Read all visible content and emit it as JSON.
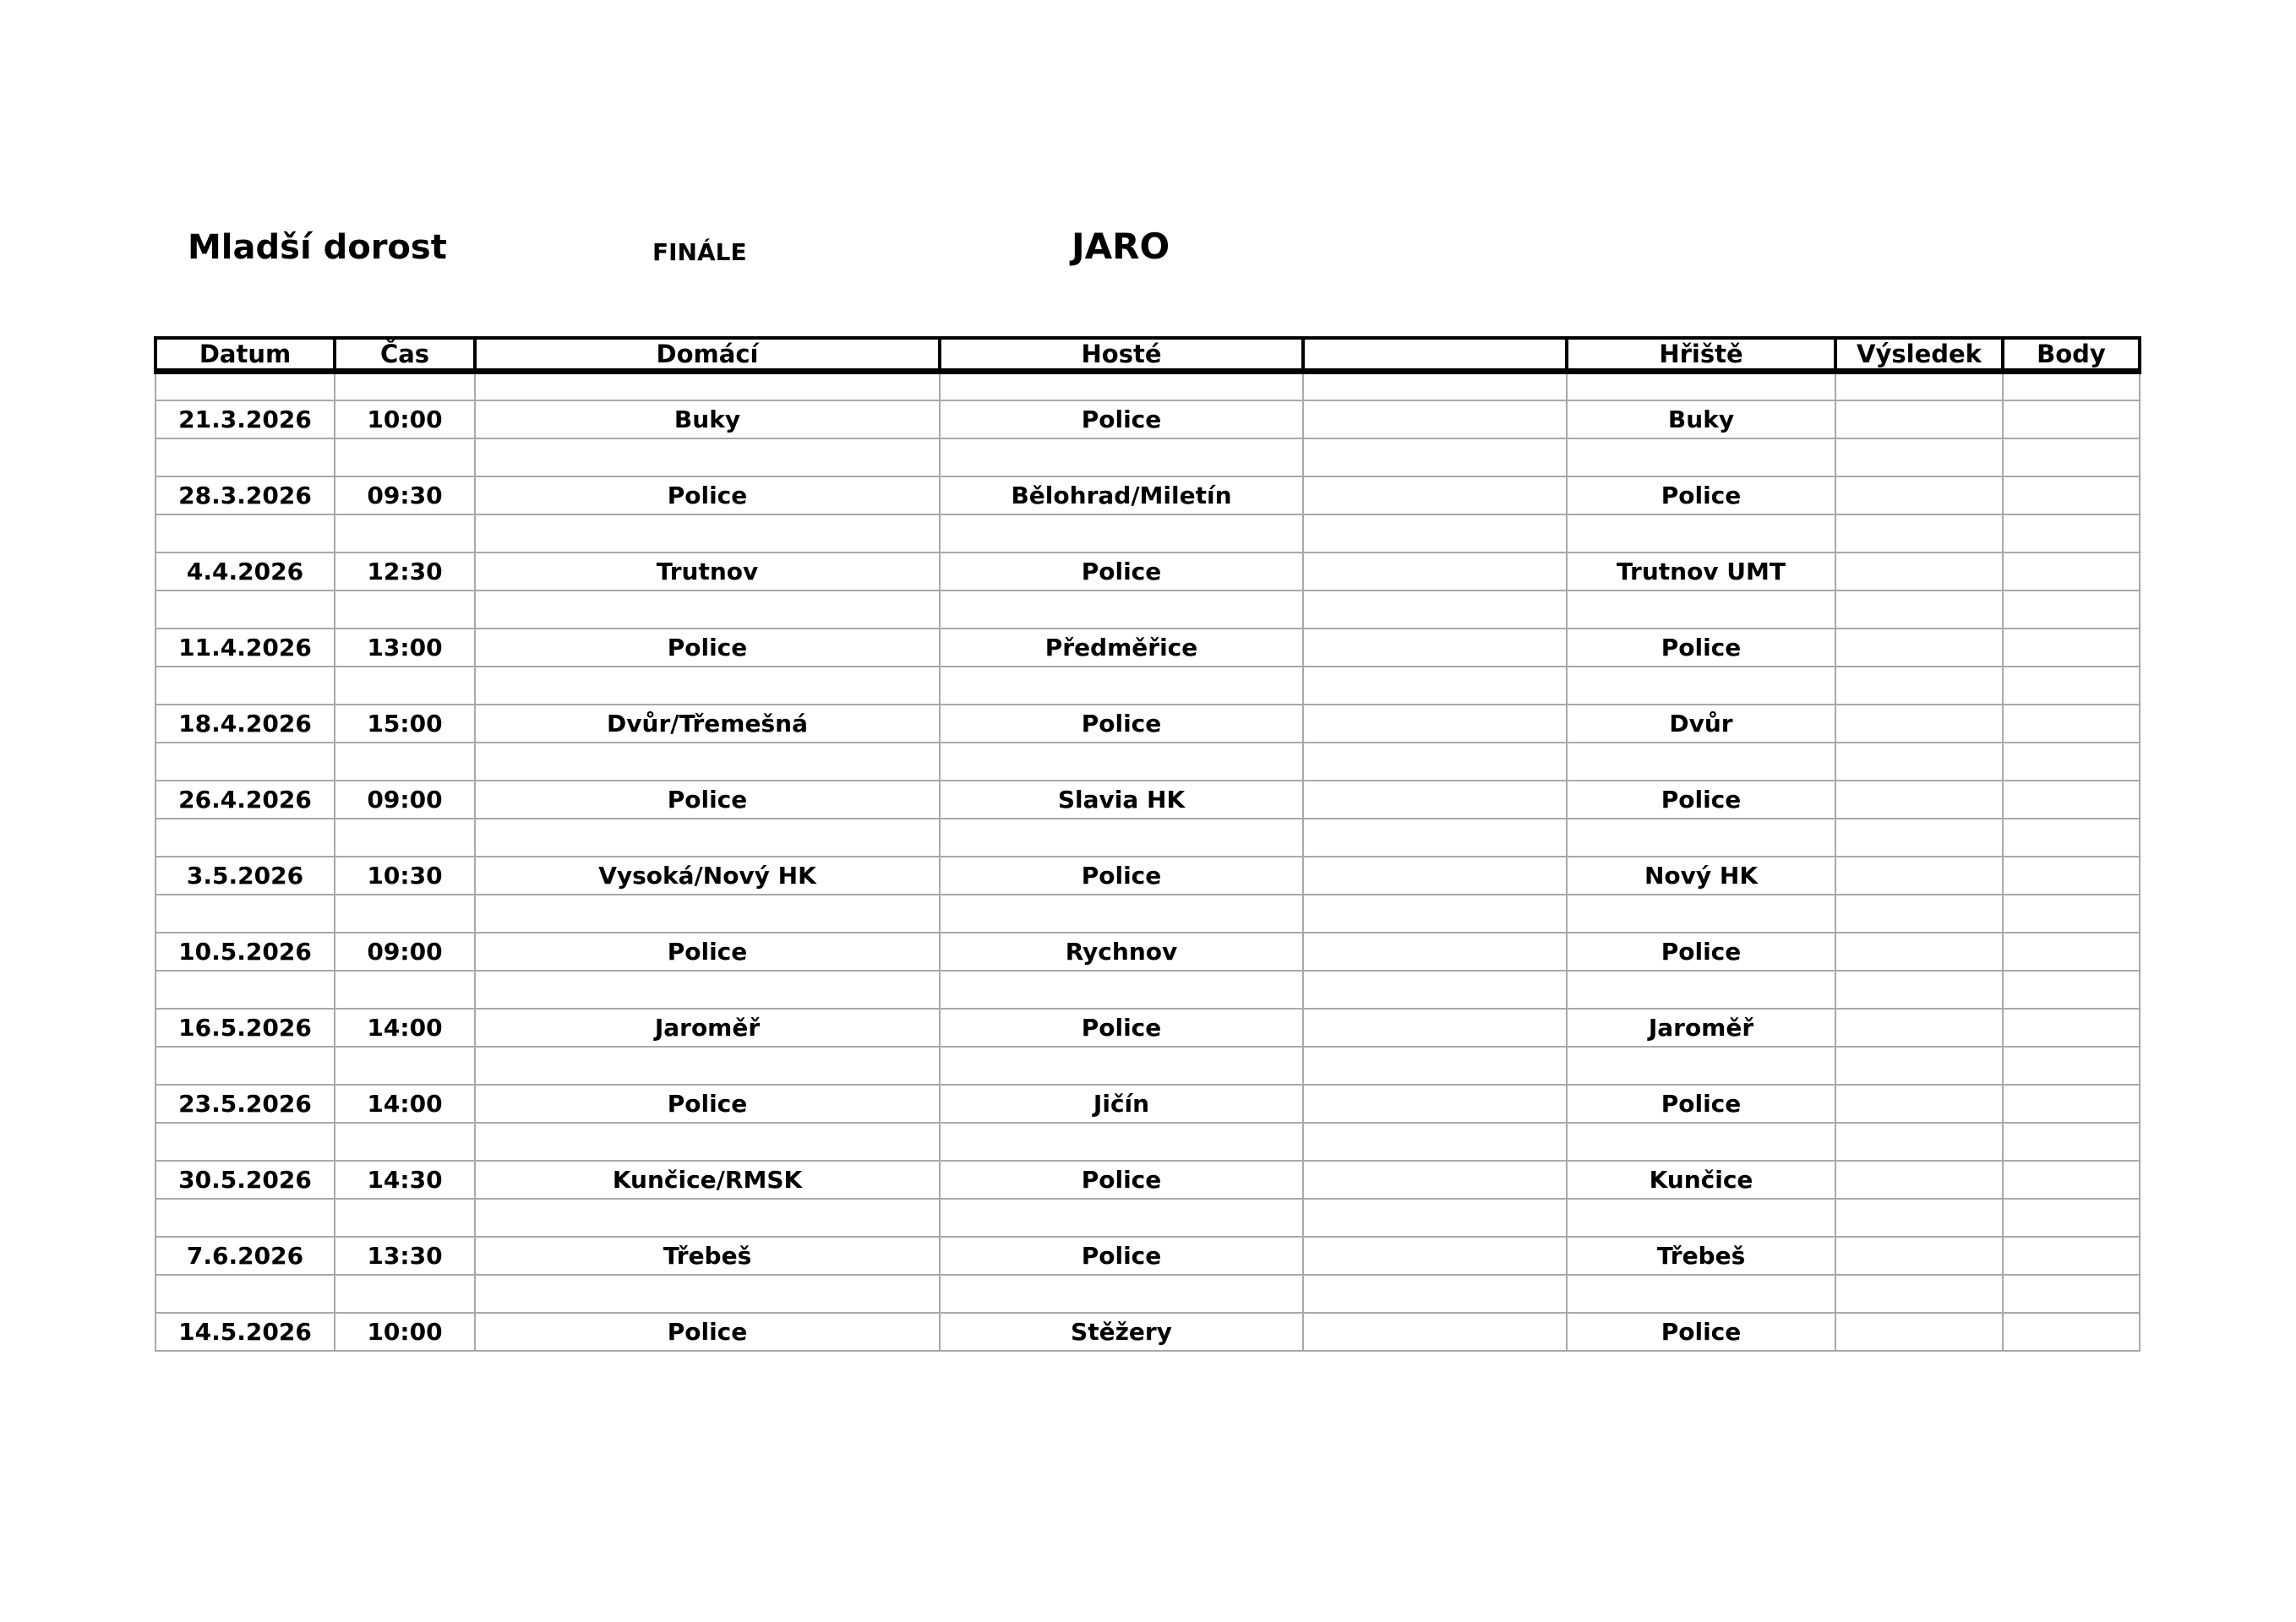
{
  "header": {
    "title": "Mladší dorost",
    "stage": "FINÁLE",
    "season": "JARO"
  },
  "colors": {
    "text": "#000000",
    "header_border": "#000000",
    "gridline": "#a9a9a9",
    "background": "#ffffff"
  },
  "table": {
    "columns": [
      "Datum",
      "Čas",
      "Domácí",
      "Hosté",
      "",
      "Hřiště",
      "Výsledek",
      "Body"
    ],
    "matches": [
      [
        "21.3.2026",
        "10:00",
        "Buky",
        "Police",
        "",
        "Buky",
        "",
        ""
      ],
      [
        "28.3.2026",
        "09:30",
        "Police",
        "Bělohrad/Miletín",
        "",
        "Police",
        "",
        ""
      ],
      [
        "4.4.2026",
        "12:30",
        "Trutnov",
        "Police",
        "",
        "Trutnov UMT",
        "",
        ""
      ],
      [
        "11.4.2026",
        "13:00",
        "Police",
        "Předměřice",
        "",
        "Police",
        "",
        ""
      ],
      [
        "18.4.2026",
        "15:00",
        "Dvůr/Třemešná",
        "Police",
        "",
        "Dvůr",
        "",
        ""
      ],
      [
        "26.4.2026",
        "09:00",
        "Police",
        "Slavia HK",
        "",
        "Police",
        "",
        ""
      ],
      [
        "3.5.2026",
        "10:30",
        "Vysoká/Nový HK",
        "Police",
        "",
        "Nový HK",
        "",
        ""
      ],
      [
        "10.5.2026",
        "09:00",
        "Police",
        "Rychnov",
        "",
        "Police",
        "",
        ""
      ],
      [
        "16.5.2026",
        "14:00",
        "Jaroměř",
        "Police",
        "",
        "Jaroměř",
        "",
        ""
      ],
      [
        "23.5.2026",
        "14:00",
        "Police",
        "Jičín",
        "",
        "Police",
        "",
        ""
      ],
      [
        "30.5.2026",
        "14:30",
        "Kunčice/RMSK",
        "Police",
        "",
        "Kunčice",
        "",
        ""
      ],
      [
        "7.6.2026",
        "13:30",
        "Třebeš",
        "Police",
        "",
        "Třebeš",
        "",
        ""
      ],
      [
        "14.5.2026",
        "10:00",
        "Police",
        "Stěžery",
        "",
        "Police",
        "",
        ""
      ]
    ]
  }
}
